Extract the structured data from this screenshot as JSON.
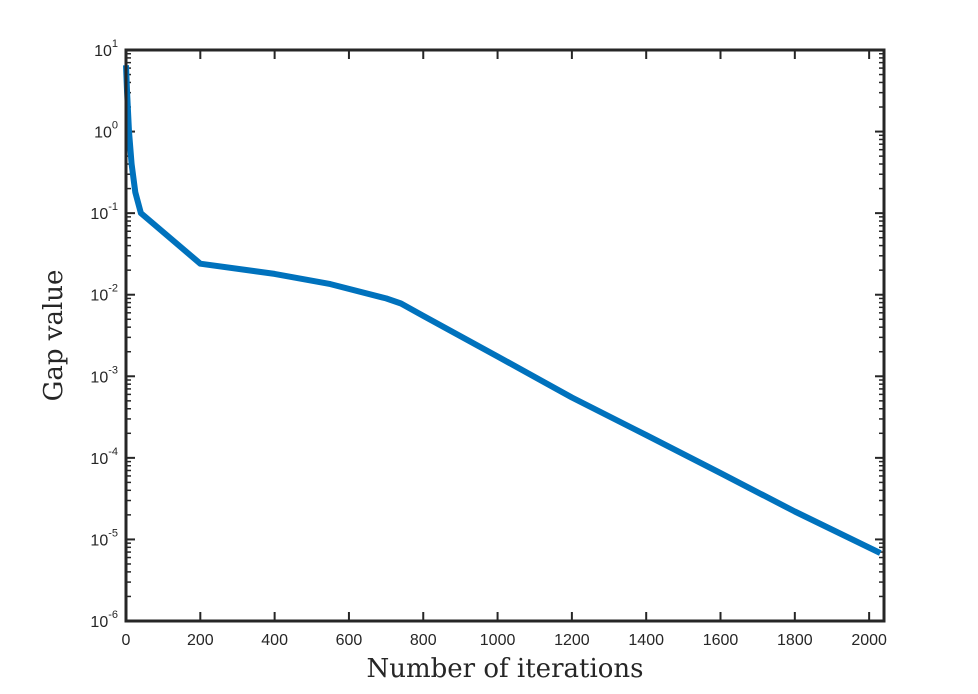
{
  "chart_data": {
    "type": "line",
    "title": "",
    "xlabel": "Number of iterations",
    "ylabel": "Gap value",
    "xlim": [
      0,
      2040
    ],
    "ylim": [
      1e-06,
      10
    ],
    "yscale": "log",
    "grid": false,
    "x_ticks": [
      0,
      200,
      400,
      600,
      800,
      1000,
      1200,
      1400,
      1600,
      1800,
      2000
    ],
    "x_tick_labels": [
      "0",
      "200",
      "400",
      "600",
      "800",
      "1000",
      "1200",
      "1400",
      "1600",
      "1800",
      "2000"
    ],
    "y_ticks": [
      1e-06,
      1e-05,
      0.0001,
      0.001,
      0.01,
      0.1,
      1,
      10
    ],
    "y_tick_labels": [
      {
        "base": "10",
        "exp": "-6"
      },
      {
        "base": "10",
        "exp": "-5"
      },
      {
        "base": "10",
        "exp": "-4"
      },
      {
        "base": "10",
        "exp": "-3"
      },
      {
        "base": "10",
        "exp": "-2"
      },
      {
        "base": "10",
        "exp": "-1"
      },
      {
        "base": "10",
        "exp": "0"
      },
      {
        "base": "10",
        "exp": "1"
      }
    ],
    "series": [
      {
        "color": "#0072BD",
        "x": [
          0,
          3,
          8,
          15,
          25,
          40,
          200,
          400,
          550,
          700,
          740,
          800,
          1000,
          1200,
          1400,
          1600,
          1800,
          2030
        ],
        "y": [
          6.5,
          3.0,
          1.0,
          0.4,
          0.18,
          0.1,
          0.024,
          0.018,
          0.0135,
          0.009,
          0.0078,
          0.0055,
          0.00175,
          0.00055,
          0.00019,
          6.5e-05,
          2.2e-05,
          6.8e-06
        ]
      }
    ]
  }
}
